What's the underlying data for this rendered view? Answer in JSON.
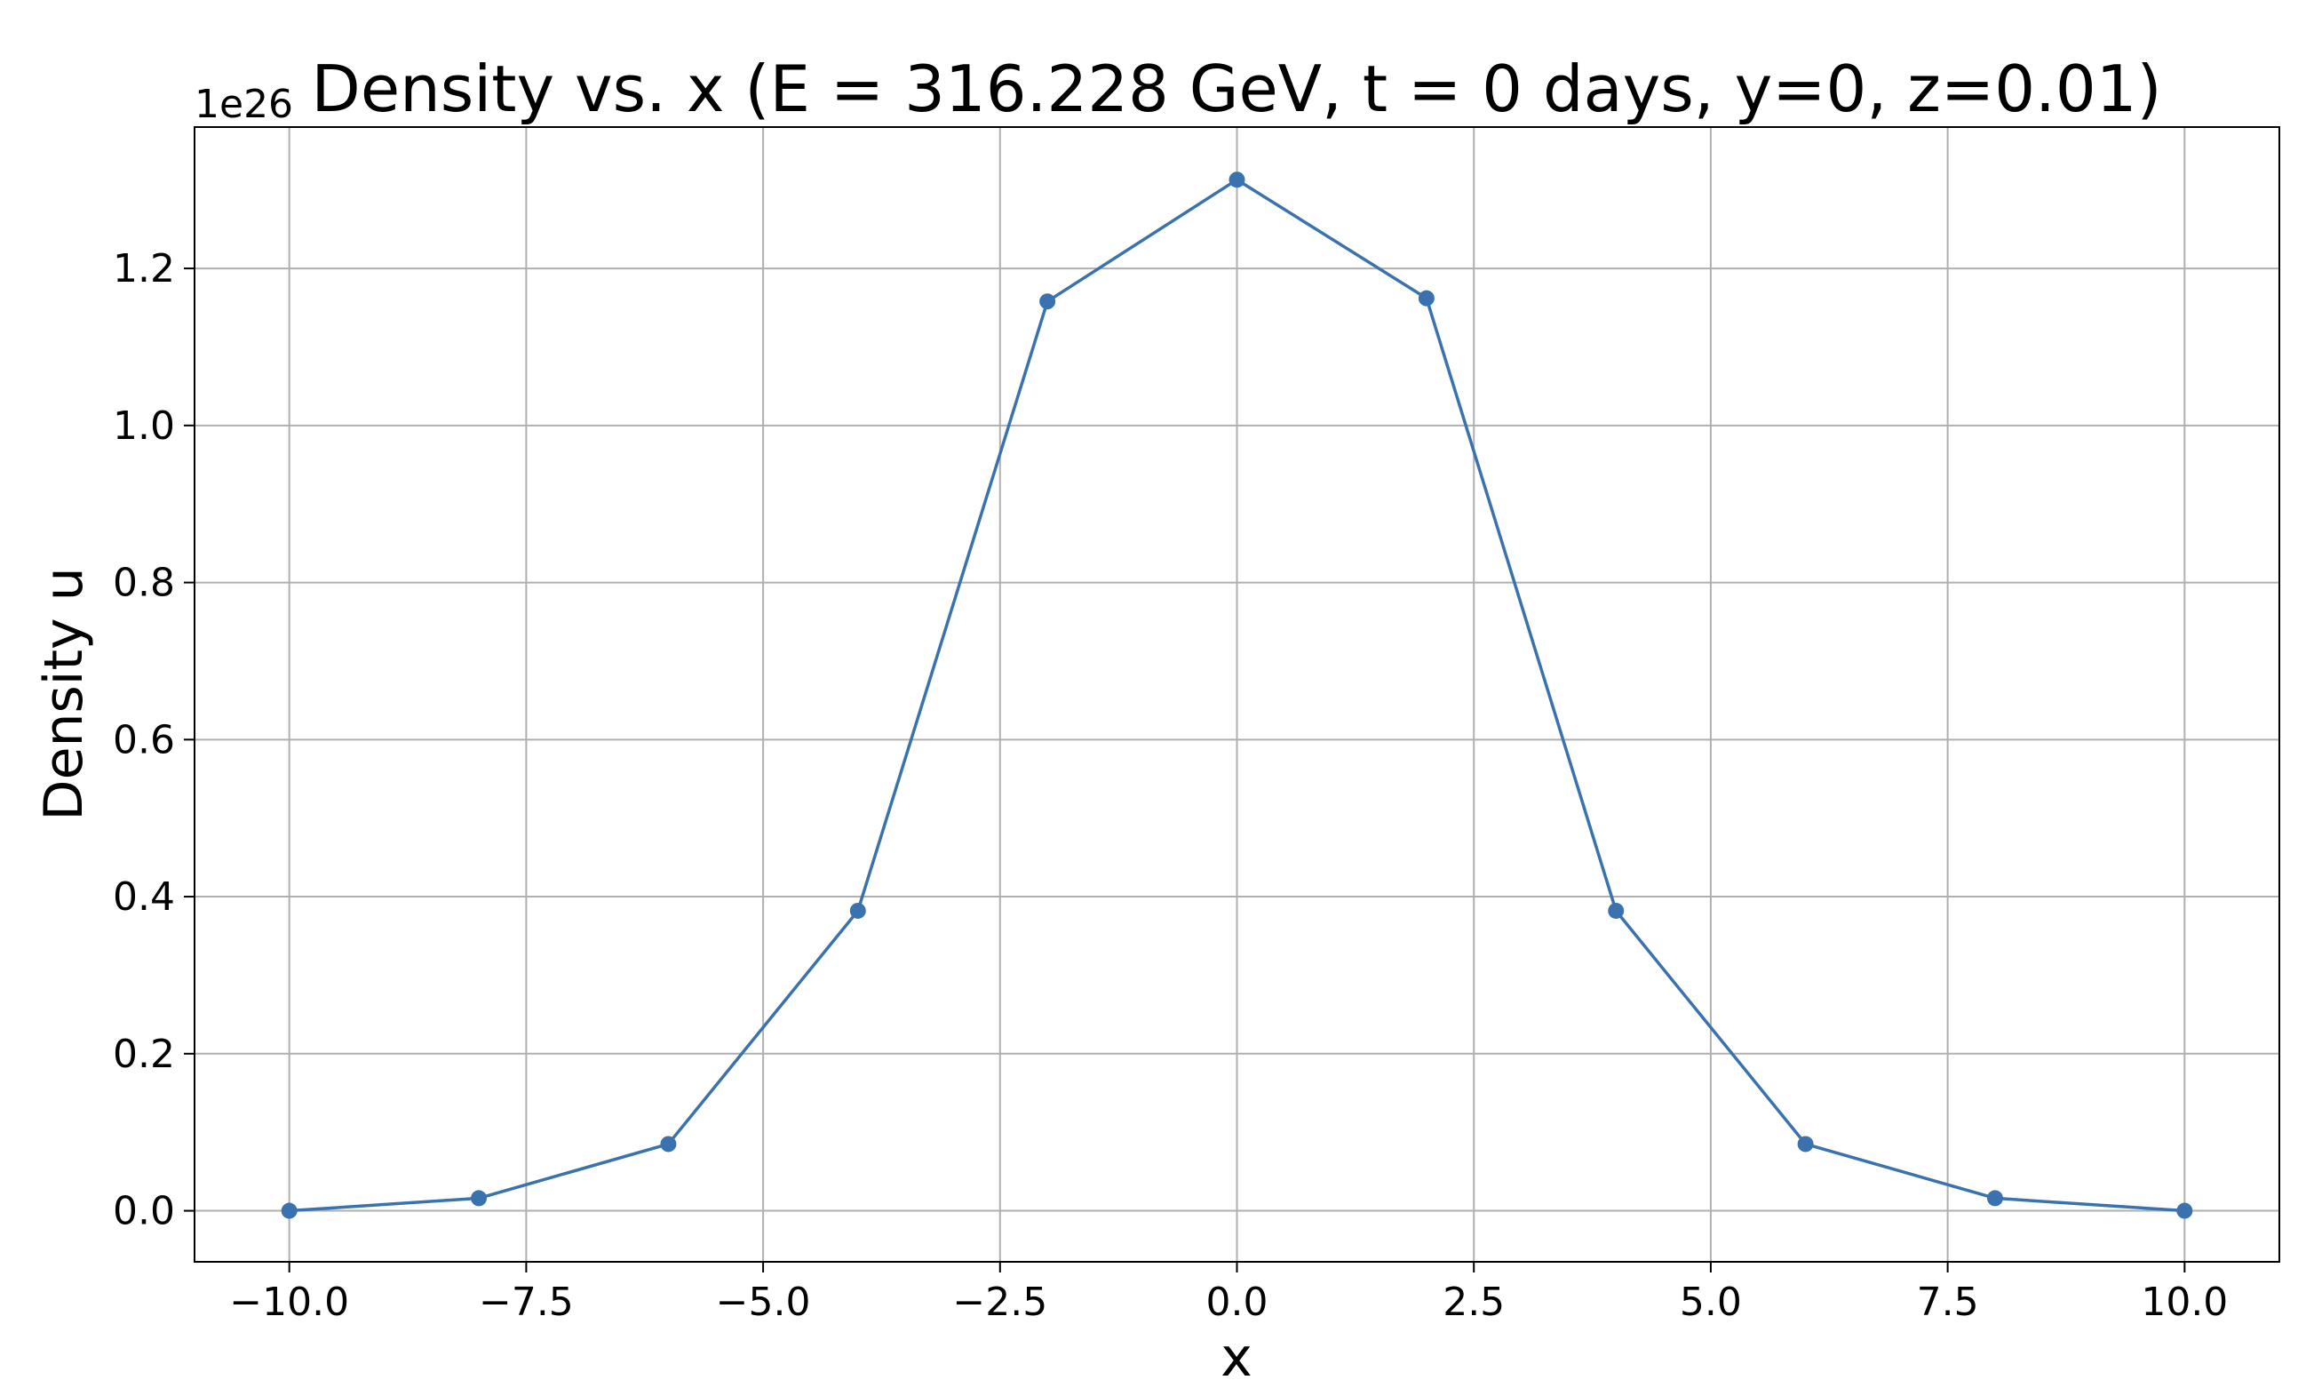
{
  "chart_data": {
    "type": "line",
    "title": "Density vs. x (E = 316.228 GeV, t = 0 days, y=0, z=0.01)",
    "xlabel": "x",
    "ylabel": "Density u",
    "y_offset_label": "1e26",
    "xlim": [
      -11,
      11
    ],
    "ylim": [
      -0.065,
      1.38
    ],
    "grid": true,
    "x_ticks": [
      -10,
      -7.5,
      -5,
      -2.5,
      0,
      2.5,
      5,
      7.5,
      10
    ],
    "x_tick_labels": [
      "−10.0",
      "−7.5",
      "−5.0",
      "−2.5",
      "0.0",
      "2.5",
      "5.0",
      "7.5",
      "10.0"
    ],
    "y_ticks": [
      0,
      0.2,
      0.4,
      0.6,
      0.8,
      1.0,
      1.2
    ],
    "y_tick_labels": [
      "0.0",
      "0.2",
      "0.4",
      "0.6",
      "0.8",
      "1.0",
      "1.2"
    ],
    "series": [
      {
        "color": "#3a72b0",
        "marker": "circle",
        "x": [
          -10,
          -8,
          -6,
          -4,
          -2,
          0,
          2,
          4,
          6,
          8,
          10
        ],
        "y": [
          0.0,
          0.016,
          0.085,
          0.382,
          1.158,
          1.313,
          1.162,
          0.382,
          0.085,
          0.016,
          0.0
        ]
      }
    ]
  }
}
